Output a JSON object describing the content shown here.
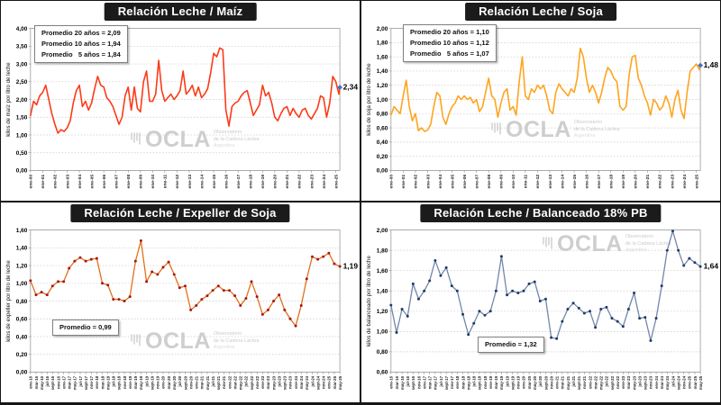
{
  "watermark": {
    "name": "OCLA",
    "line1": "Observatorio",
    "line2": "de la Cadena Láctea",
    "line3": "Argentina"
  },
  "chart_data": [
    {
      "type": "line",
      "title": "Relación Leche / Maíz",
      "ylabel": "kilos de maíz por litro de leche",
      "end_label": "2,34",
      "annotations": [
        "Promedio 20 años = 2,09",
        "Promedio 10 años = 1,94",
        "Promedio   5 años = 1,84"
      ],
      "ylim": [
        0,
        4.0
      ],
      "ytick_step": 0.5,
      "grid": "horizontal-dashed",
      "legend": "none",
      "x_span": 304,
      "xtick_interval_months": 12,
      "xtick_font": 5,
      "line_color": "#fb3a17",
      "line_width": 1.6,
      "marker_color": null,
      "end_marker_color": "#4472c4",
      "xtick_labels": [
        "ene-00",
        "ene-01",
        "ene-02",
        "ene-03",
        "ene-04",
        "ene-05",
        "ene-06",
        "ene-07",
        "ene-08",
        "ene-09",
        "ene-10",
        "ene-11",
        "ene-12",
        "ene-13",
        "ene-14",
        "ene-15",
        "ene-16",
        "ene-17",
        "ene-18",
        "ene-19",
        "ene-20",
        "ene-21",
        "ene-22",
        "ene-23",
        "ene-24",
        "ene-25"
      ],
      "series": [
        {
          "x_months": [
            0,
            3,
            6,
            9,
            12,
            15,
            18,
            21,
            24,
            27,
            30,
            33,
            36,
            39,
            42,
            45,
            48,
            51,
            54,
            57,
            60,
            63,
            66,
            69,
            72,
            75,
            78,
            81,
            84,
            87,
            90,
            93,
            96,
            99,
            102,
            105,
            108,
            111,
            114,
            117,
            120,
            123,
            126,
            129,
            132,
            135,
            138,
            141,
            144,
            147,
            150,
            153,
            156,
            159,
            162,
            165,
            168,
            171,
            174,
            177,
            180,
            183,
            186,
            189,
            192,
            195,
            198,
            201,
            204,
            207,
            210,
            213,
            216,
            219,
            222,
            225,
            228,
            231,
            234,
            237,
            240,
            243,
            246,
            249,
            252,
            255,
            258,
            261,
            264,
            267,
            270,
            273,
            276,
            279,
            282,
            285,
            288,
            291,
            294,
            297,
            300,
            303,
            304
          ],
          "values": [
            1.55,
            1.95,
            1.85,
            2.1,
            2.2,
            2.4,
            2.0,
            1.6,
            1.3,
            1.05,
            1.15,
            1.1,
            1.2,
            1.4,
            1.9,
            2.25,
            2.4,
            1.8,
            1.95,
            1.7,
            1.9,
            2.3,
            2.65,
            2.4,
            2.35,
            2.05,
            1.95,
            1.8,
            1.55,
            1.3,
            1.5,
            2.1,
            2.35,
            1.7,
            2.35,
            1.75,
            1.65,
            2.5,
            2.8,
            1.95,
            1.95,
            2.15,
            3.1,
            2.25,
            1.95,
            2.05,
            2.15,
            2.0,
            2.1,
            2.25,
            2.8,
            2.15,
            2.25,
            2.4,
            2.1,
            2.35,
            2.05,
            2.15,
            2.3,
            2.75,
            3.3,
            3.2,
            3.45,
            3.4,
            1.7,
            1.25,
            1.8,
            1.9,
            1.95,
            2.1,
            2.2,
            2.25,
            1.9,
            1.55,
            1.7,
            1.85,
            2.4,
            2.1,
            2.2,
            1.9,
            1.5,
            1.4,
            1.6,
            1.75,
            1.8,
            1.55,
            1.75,
            1.6,
            1.5,
            1.7,
            1.75,
            1.55,
            1.45,
            1.6,
            1.75,
            2.1,
            2.05,
            1.5,
            1.9,
            2.65,
            2.5,
            2.15,
            2.34
          ]
        }
      ]
    },
    {
      "type": "line",
      "title": "Relación Leche / Soja",
      "ylabel": "kilos de soja por litro de leche",
      "end_label": "1,48",
      "annotations": [
        "Promedio 20 años = 1,10",
        "Promedio 10 años = 1,12",
        "Promedio   5 años = 1,07"
      ],
      "ylim": [
        0,
        2.0
      ],
      "ytick_step": 0.2,
      "grid": "horizontal-dashed",
      "legend": "none",
      "x_span": 304,
      "xtick_interval_months": 12,
      "xtick_font": 5,
      "line_color": "#ffa41e",
      "line_width": 1.6,
      "marker_color": null,
      "end_marker_color": "#4472c4",
      "xtick_labels": [
        "ene-00",
        "ene-01",
        "ene-02",
        "ene-03",
        "ene-04",
        "ene-05",
        "ene-06",
        "ene-07",
        "ene-08",
        "ene-09",
        "ene-10",
        "ene-11",
        "ene-12",
        "ene-13",
        "ene-14",
        "ene-15",
        "ene-16",
        "ene-17",
        "ene-18",
        "ene-19",
        "ene-20",
        "ene-21",
        "ene-22",
        "ene-23",
        "ene-24",
        "ene-25"
      ],
      "series": [
        {
          "x_months": [
            0,
            3,
            6,
            9,
            12,
            15,
            18,
            21,
            24,
            27,
            30,
            33,
            36,
            39,
            42,
            45,
            48,
            51,
            54,
            57,
            60,
            63,
            66,
            69,
            72,
            75,
            78,
            81,
            84,
            87,
            90,
            93,
            96,
            99,
            102,
            105,
            108,
            111,
            114,
            117,
            120,
            123,
            126,
            129,
            132,
            135,
            138,
            141,
            144,
            147,
            150,
            153,
            156,
            159,
            162,
            165,
            168,
            171,
            174,
            177,
            180,
            183,
            186,
            189,
            192,
            195,
            198,
            201,
            204,
            207,
            210,
            213,
            216,
            219,
            222,
            225,
            228,
            231,
            234,
            237,
            240,
            243,
            246,
            249,
            252,
            255,
            258,
            261,
            264,
            267,
            270,
            273,
            276,
            279,
            282,
            285,
            288,
            291,
            294,
            297,
            300,
            303,
            304
          ],
          "values": [
            0.78,
            0.9,
            0.85,
            0.8,
            1.05,
            1.27,
            0.9,
            0.7,
            0.8,
            0.56,
            0.6,
            0.55,
            0.57,
            0.65,
            0.9,
            1.1,
            1.05,
            0.75,
            0.65,
            0.8,
            0.9,
            0.95,
            1.05,
            1.0,
            1.05,
            1.0,
            1.03,
            0.95,
            1.0,
            0.83,
            0.9,
            1.1,
            1.3,
            1.05,
            1.0,
            0.75,
            0.95,
            1.1,
            1.15,
            0.85,
            0.9,
            0.78,
            1.25,
            1.6,
            1.05,
            1.0,
            1.15,
            1.1,
            1.2,
            1.15,
            1.2,
            1.05,
            0.85,
            0.8,
            1.1,
            1.22,
            1.15,
            1.1,
            1.05,
            1.15,
            1.1,
            1.3,
            1.72,
            1.6,
            1.3,
            1.1,
            1.2,
            1.1,
            0.95,
            1.1,
            1.3,
            1.45,
            1.4,
            1.3,
            1.25,
            0.9,
            0.85,
            0.9,
            1.35,
            1.6,
            1.62,
            1.3,
            1.2,
            1.05,
            0.95,
            0.78,
            1.0,
            0.95,
            0.85,
            0.9,
            1.05,
            0.95,
            0.75,
            1.0,
            1.13,
            0.85,
            0.73,
            1.1,
            1.4,
            1.45,
            1.5,
            1.42,
            1.48
          ]
        }
      ]
    },
    {
      "type": "line",
      "title": "Relación Leche / Expeller de Soja",
      "ylabel": "kilos de expeller por litro de leche",
      "end_label": "1,19",
      "annotations": [
        "Promedio = 0,99"
      ],
      "ylim": [
        0,
        1.6
      ],
      "ytick_step": 0.2,
      "grid": "horizontal-dashed",
      "legend": "none",
      "x_span": 112,
      "xtick_interval_months": 2,
      "xtick_font": 4.5,
      "line_color": "#e0701a",
      "line_width": 1.3,
      "marker_color": "#a51717",
      "end_marker_color": null,
      "xtick_labels": [
        "ene-16",
        "mar-16",
        "may-16",
        "jul-16",
        "sept-16",
        "nov-16",
        "ene-17",
        "mar-17",
        "may-17",
        "jul-17",
        "sept-17",
        "nov-17",
        "ene-18",
        "mar-18",
        "may-18",
        "jul-18",
        "sept-18",
        "nov-18",
        "ene-19",
        "mar-19",
        "may-19",
        "jul-19",
        "sept-19",
        "nov-19",
        "ene-20",
        "mar-20",
        "may-20",
        "jul-20",
        "sept-20",
        "nov-20",
        "ene-21",
        "mar-21",
        "may-21",
        "jul-21",
        "sept-21",
        "nov-21",
        "ene-22",
        "mar-22",
        "may-22",
        "jul-22",
        "sept-22",
        "nov-22",
        "ene-23",
        "mar-23",
        "may-23",
        "jul-23",
        "sept-23",
        "nov-23",
        "ene-24",
        "mar-24",
        "may-24",
        "jul-24",
        "sept-24",
        "nov-24",
        "ene-25",
        "mar-25",
        "may-25"
      ],
      "series": [
        {
          "x_months": [
            0,
            2,
            4,
            6,
            8,
            10,
            12,
            14,
            16,
            18,
            20,
            22,
            24,
            26,
            28,
            30,
            32,
            34,
            36,
            38,
            40,
            42,
            44,
            46,
            48,
            50,
            52,
            54,
            56,
            58,
            60,
            62,
            64,
            66,
            68,
            70,
            72,
            74,
            76,
            78,
            80,
            82,
            84,
            86,
            88,
            90,
            92,
            94,
            96,
            98,
            100,
            102,
            104,
            106,
            108,
            110,
            112
          ],
          "values": [
            1.03,
            0.87,
            0.9,
            0.87,
            0.97,
            1.02,
            1.02,
            1.17,
            1.25,
            1.29,
            1.25,
            1.27,
            1.28,
            1.0,
            0.98,
            0.82,
            0.82,
            0.8,
            0.85,
            1.25,
            1.48,
            1.02,
            1.13,
            1.1,
            1.18,
            1.24,
            1.1,
            0.95,
            0.97,
            0.7,
            0.75,
            0.82,
            0.86,
            0.92,
            0.97,
            0.92,
            0.92,
            0.86,
            0.75,
            0.83,
            1.02,
            0.85,
            0.65,
            0.7,
            0.8,
            0.87,
            0.7,
            0.6,
            0.52,
            0.75,
            1.05,
            1.3,
            1.27,
            1.3,
            1.34,
            1.22,
            1.19
          ]
        }
      ]
    },
    {
      "type": "line",
      "title": "Relación Leche / Balanceado 18% PB",
      "ylabel": "kilos de balanceado por litro de leche",
      "end_label": "1,64",
      "annotations": [
        "Promedio = 1,32"
      ],
      "ylim": [
        0.6,
        2.0
      ],
      "ytick_step": 0.2,
      "grid": "horizontal-dashed",
      "legend": "none",
      "x_span": 112,
      "xtick_interval_months": 2,
      "xtick_font": 4.5,
      "line_color": "#7286aa",
      "line_width": 1.3,
      "marker_color": "#1d3a68",
      "end_marker_color": null,
      "xtick_labels": [
        "ene-16",
        "mar-16",
        "may-16",
        "jul-16",
        "sept-16",
        "nov-16",
        "ene-17",
        "mar-17",
        "may-17",
        "jul-17",
        "sept-17",
        "nov-17",
        "ene-18",
        "mar-18",
        "may-18",
        "jul-18",
        "sept-18",
        "nov-18",
        "ene-19",
        "mar-19",
        "may-19",
        "jul-19",
        "sept-19",
        "nov-19",
        "ene-20",
        "mar-20",
        "may-20",
        "jul-20",
        "sept-20",
        "nov-20",
        "ene-21",
        "mar-21",
        "may-21",
        "jul-21",
        "sept-21",
        "nov-21",
        "ene-22",
        "mar-22",
        "may-22",
        "jul-22",
        "sept-22",
        "nov-22",
        "ene-23",
        "mar-23",
        "may-23",
        "jul-23",
        "sept-23",
        "nov-23",
        "ene-24",
        "mar-24",
        "may-24",
        "jul-24",
        "sept-24",
        "nov-24",
        "ene-25",
        "mar-25",
        "may-25"
      ],
      "series": [
        {
          "x_months": [
            0,
            2,
            4,
            6,
            8,
            10,
            12,
            14,
            16,
            18,
            20,
            22,
            24,
            26,
            28,
            30,
            32,
            34,
            36,
            38,
            40,
            42,
            44,
            46,
            48,
            50,
            52,
            54,
            56,
            58,
            60,
            62,
            64,
            66,
            68,
            70,
            72,
            74,
            76,
            78,
            80,
            82,
            84,
            86,
            88,
            90,
            92,
            94,
            96,
            98,
            100,
            102,
            104,
            106,
            108,
            110,
            112
          ],
          "values": [
            1.26,
            0.99,
            1.22,
            1.15,
            1.47,
            1.32,
            1.4,
            1.5,
            1.7,
            1.55,
            1.63,
            1.45,
            1.4,
            1.17,
            0.97,
            1.08,
            1.2,
            1.16,
            1.2,
            1.4,
            1.74,
            1.36,
            1.4,
            1.38,
            1.4,
            1.47,
            1.49,
            1.3,
            1.32,
            0.94,
            0.93,
            1.1,
            1.22,
            1.28,
            1.23,
            1.18,
            1.2,
            1.04,
            1.22,
            1.24,
            1.13,
            1.1,
            1.05,
            1.22,
            1.38,
            1.13,
            1.14,
            0.91,
            1.13,
            1.45,
            1.8,
            1.99,
            1.8,
            1.65,
            1.72,
            1.68,
            1.64
          ]
        }
      ]
    }
  ]
}
